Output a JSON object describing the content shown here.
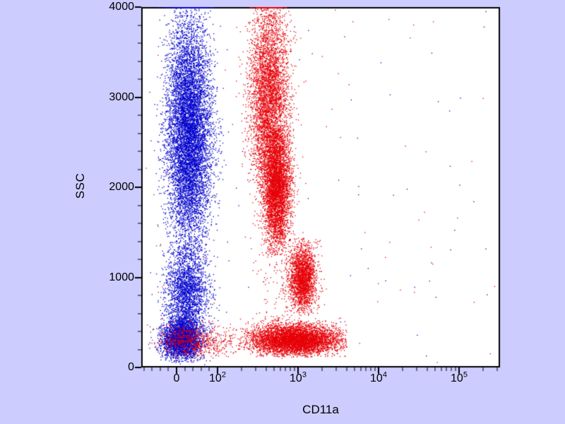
{
  "background_color": "#ccccfe",
  "chart_data": {
    "type": "scatter",
    "title": "",
    "xlabel": "CD11a",
    "ylabel": "SSC",
    "x_scale": "biexponential",
    "y_scale": "linear",
    "ylim": [
      0,
      4000
    ],
    "y_ticks": [
      0,
      1000,
      2000,
      3000,
      4000
    ],
    "y_minor_step": 200,
    "x_major_ticks": [
      {
        "label": "0",
        "value": 0
      },
      {
        "base": "10",
        "exp": "2",
        "value": 100
      },
      {
        "base": "10",
        "exp": "3",
        "value": 1000
      },
      {
        "base": "10",
        "exp": "4",
        "value": 10000
      },
      {
        "base": "10",
        "exp": "5",
        "value": 100000
      }
    ],
    "x_minor_ticks_linear": [
      -80,
      -60,
      -40,
      -20,
      20,
      40,
      60,
      80
    ],
    "plot_bg": "#ffffff",
    "frame_color": "#000000",
    "series_colors": {
      "blue": "#0000cd",
      "red": "#e60008"
    },
    "draw_order": [
      "blue",
      "red"
    ],
    "populations": [
      {
        "name": "control-granulocytes",
        "series": "blue",
        "n": 8000,
        "x": {
          "dist": "linear",
          "mean": 30,
          "sd": 27
        },
        "y": {
          "dist": "normal",
          "mean": 2600,
          "sd": 620,
          "clip": [
            1200,
            4000
          ]
        }
      },
      {
        "name": "control-granulocytes-saturated",
        "series": "blue",
        "n": 380,
        "x": {
          "dist": "linear",
          "mean": 30,
          "sd": 24
        },
        "y": {
          "dist": "const",
          "value": 4000
        }
      },
      {
        "name": "control-monocytes",
        "series": "blue",
        "n": 2200,
        "x": {
          "dist": "linear",
          "mean": 25,
          "sd": 26
        },
        "y": {
          "dist": "normal",
          "mean": 850,
          "sd": 260,
          "clip": [
            380,
            1400
          ]
        }
      },
      {
        "name": "control-lymphocytes",
        "series": "blue",
        "n": 3000,
        "x": {
          "dist": "linear",
          "mean": 12,
          "sd": 24
        },
        "y": {
          "dist": "normal",
          "mean": 320,
          "sd": 110,
          "clip": [
            60,
            640
          ]
        }
      },
      {
        "name": "control-scatter-column",
        "series": "blue",
        "n": 600,
        "x": {
          "dist": "linear",
          "mean": 28,
          "sd": 26
        },
        "y": {
          "dist": "uniform",
          "min": 30,
          "max": 4000
        }
      },
      {
        "name": "blue-sparse-noise",
        "series": "blue",
        "n": 60,
        "x": {
          "dist": "uniform-px",
          "min": 205,
          "max": 700
        },
        "y": {
          "dist": "uniform",
          "min": 30,
          "max": 4000
        }
      },
      {
        "name": "stained-granulocytes-upper",
        "series": "red",
        "n": 4200,
        "x": {
          "dist": "log",
          "log_mean": 2.63,
          "log_sd": 0.12,
          "clip": [
            130,
            30000
          ]
        },
        "y": {
          "dist": "normal",
          "mean": 3000,
          "sd": 500,
          "clip": [
            1900,
            4000
          ]
        }
      },
      {
        "name": "stained-granulocytes-lower",
        "series": "red",
        "n": 4200,
        "x": {
          "dist": "log",
          "log_mean": 2.73,
          "log_sd": 0.085,
          "clip": [
            130,
            30000
          ]
        },
        "y": {
          "dist": "normal",
          "mean": 2000,
          "sd": 360,
          "clip": [
            1250,
            2650
          ]
        }
      },
      {
        "name": "stained-granulocytes-saturated",
        "series": "red",
        "n": 220,
        "x": {
          "dist": "log",
          "log_mean": 2.63,
          "log_sd": 0.08
        },
        "y": {
          "dist": "const",
          "value": 4000
        }
      },
      {
        "name": "stained-monocytes",
        "series": "red",
        "n": 2300,
        "x": {
          "dist": "log",
          "log_mean": 3.05,
          "log_sd": 0.085,
          "clip": [
            300,
            6000
          ]
        },
        "y": {
          "dist": "normal",
          "mean": 1000,
          "sd": 190,
          "clip": [
            580,
            1450
          ]
        }
      },
      {
        "name": "stained-lymphocytes",
        "series": "red",
        "n": 5200,
        "x": {
          "dist": "log",
          "log_mean": 2.95,
          "log_sd": 0.28,
          "clip": [
            130,
            4000
          ]
        },
        "y": {
          "dist": "normal",
          "mean": 310,
          "sd": 85,
          "clip": [
            120,
            620
          ]
        }
      },
      {
        "name": "stained-lymphocytes-dim",
        "series": "red",
        "n": 700,
        "x": {
          "dist": "linear",
          "mean": 45,
          "sd": 45
        },
        "y": {
          "dist": "normal",
          "mean": 300,
          "sd": 95,
          "clip": [
            100,
            560
          ]
        }
      },
      {
        "name": "stained-scatter-column",
        "series": "red",
        "n": 450,
        "x": {
          "dist": "log",
          "log_mean": 2.7,
          "log_sd": 0.12
        },
        "y": {
          "dist": "uniform",
          "min": 100,
          "max": 4000
        }
      },
      {
        "name": "red-sparse-noise",
        "series": "red",
        "n": 70,
        "x": {
          "dist": "uniform-px",
          "min": 205,
          "max": 700
        },
        "y": {
          "dist": "uniform",
          "min": 30,
          "max": 4000
        }
      }
    ]
  }
}
